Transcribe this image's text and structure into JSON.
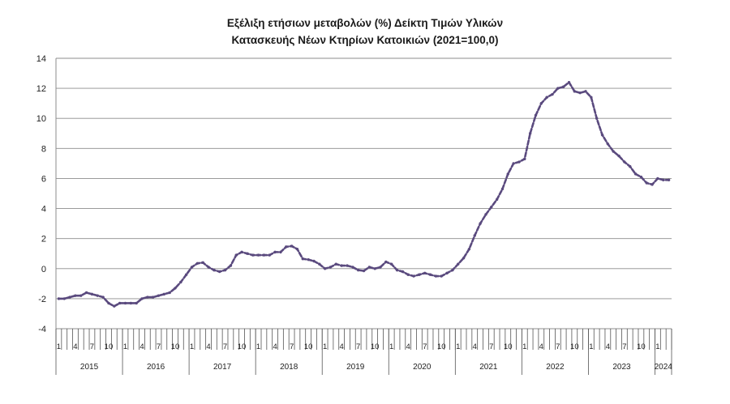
{
  "chart_data": {
    "type": "line",
    "title_line1": "Εξέλιξη ετήσιων μεταβολών (%) Δείκτη Τιμών Υλικών",
    "title_line2": "Κατασκευής Νέων Κτηρίων Κατοικιών (2021=100,0)",
    "ylim": [
      -4,
      14
    ],
    "yticks": [
      -4,
      -2,
      0,
      2,
      4,
      6,
      8,
      10,
      12,
      14
    ],
    "grid": true,
    "month_tick_labels": [
      "1",
      "4",
      "7",
      "10"
    ],
    "years": [
      "2015",
      "2016",
      "2017",
      "2018",
      "2019",
      "2020",
      "2021",
      "2022",
      "2023",
      "2024"
    ],
    "series_color": "#5a4a7e",
    "series": [
      {
        "values": [
          -2.0,
          -2.0,
          -1.9,
          -1.8,
          -1.8,
          -1.6,
          -1.7,
          -1.8,
          -1.9,
          -2.3,
          -2.5,
          -2.3,
          -2.3,
          -2.3,
          -2.3,
          -2.0,
          -1.9,
          -1.9,
          -1.8,
          -1.7,
          -1.6,
          -1.3,
          -0.9,
          -0.4,
          0.1,
          0.35,
          0.4,
          0.1,
          -0.1,
          -0.2,
          -0.1,
          0.2,
          0.9,
          1.1,
          1.0,
          0.9,
          0.9,
          0.9,
          0.9,
          1.1,
          1.1,
          1.45,
          1.5,
          1.3,
          0.65,
          0.6,
          0.5,
          0.3,
          0.0,
          0.1,
          0.3,
          0.2,
          0.2,
          0.1,
          -0.1,
          -0.15,
          0.1,
          0.0,
          0.1,
          0.45,
          0.3,
          -0.1,
          -0.2,
          -0.4,
          -0.5,
          -0.4,
          -0.3,
          -0.4,
          -0.5,
          -0.5,
          -0.3,
          -0.1,
          0.3,
          0.7,
          1.3,
          2.2,
          3.0,
          3.6,
          4.1,
          4.6,
          5.3,
          6.3,
          7.0,
          7.1,
          7.3,
          9.0,
          10.2,
          11.0,
          11.4,
          11.6,
          12.0,
          12.1,
          12.4,
          11.8,
          11.7,
          11.8,
          11.4,
          10.0,
          8.9,
          8.3,
          7.8,
          7.5,
          7.1,
          6.8,
          6.3,
          6.1,
          5.7,
          5.6,
          6.0,
          5.9,
          5.9
        ]
      }
    ]
  }
}
